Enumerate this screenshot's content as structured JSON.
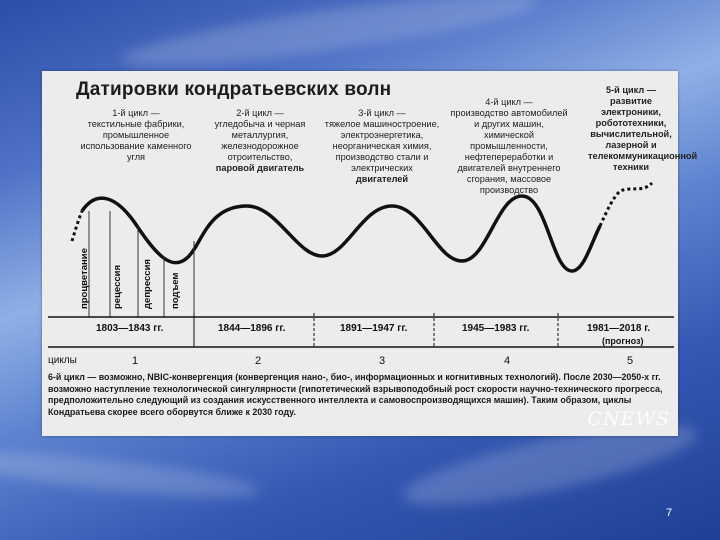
{
  "slide": {
    "title": "Датировки кондратьевских волн",
    "page_number": "7",
    "watermark": "CNEWS"
  },
  "cycles": [
    {
      "label": "1-й цикл —",
      "desc": "текстильные фабрики, промышленное использование каменного угля",
      "period": "1803—1843 гг.",
      "number": "1"
    },
    {
      "label": "2-й цикл —",
      "desc": "угледобыча и черная металлургия, железнодорожное отроительство,",
      "emph": "паровой двигатель",
      "period": "1844—1896 гг.",
      "number": "2"
    },
    {
      "label": "3-й цикл —",
      "desc": "тяжелое машиностроение, электроэнергетика, неорганическая химия, производство стали и электрических",
      "emph": "двигателей",
      "period": "1891—1947 гг.",
      "number": "3"
    },
    {
      "label": "4-й цикл —",
      "desc": "производство автомобилей и других машин, химической промышленности, нефтепереработки и двигателей внутреннего сгорания, массовое производство",
      "period": "1945—1983 гг.",
      "number": "4"
    },
    {
      "label": "5-й цикл —",
      "desc": "развитие электроники, робототехники, вычислительной, лазерной и телекоммуникационной техники",
      "period": "1981—2018 г.",
      "forecast": "(прогноз)",
      "number": "5"
    }
  ],
  "phases": [
    "процветание",
    "рецессия",
    "депрессия",
    "подъем"
  ],
  "cycles_label": "циклы",
  "footnote": "6-й цикл — возможно, NBIC-конвергенция (конвергенция нано-, био-, информационных и когнитивных технологий). После 2030—2050-х гг. возможно наступление технологической сингулярности (гипотетический взрывоподобный рост скорости научно-технического прогресса, предположительно следующий из создания искусственного интеллекта и самовоспроизводящихся машин). Таким образом, циклы Кондратьева скорее всего оборвутся ближе к 2030 году."
}
